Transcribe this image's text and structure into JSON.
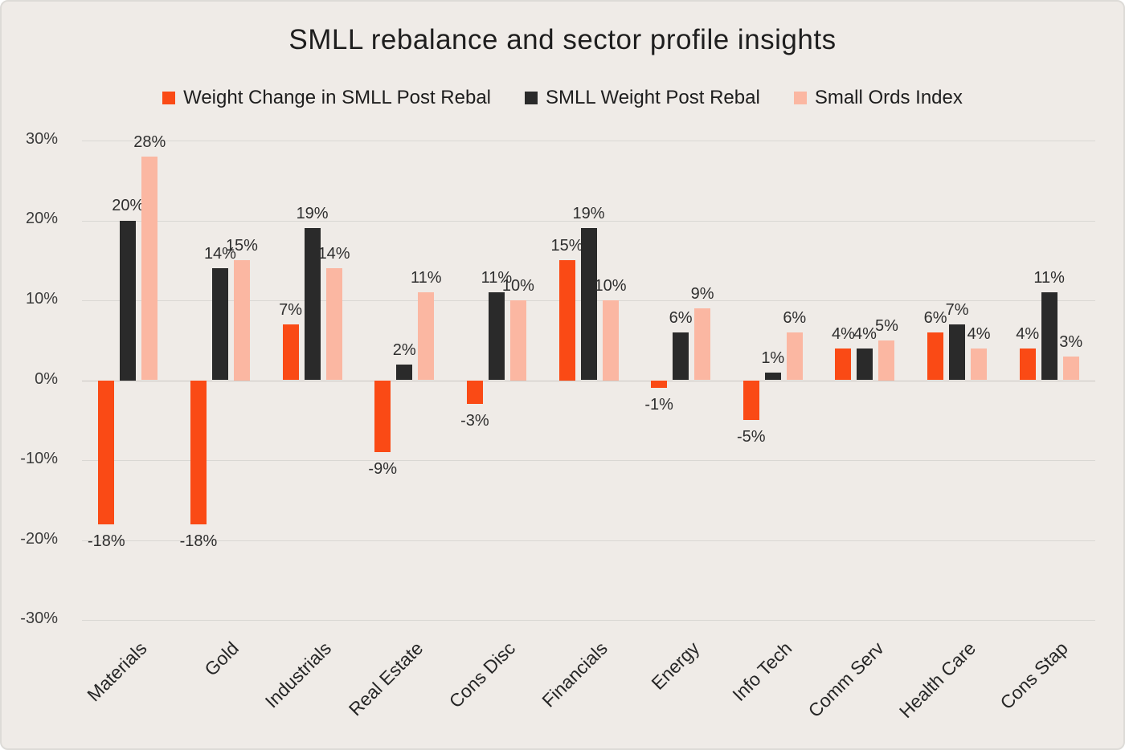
{
  "title": "SMLL rebalance and sector profile insights",
  "chart_data": {
    "type": "bar",
    "title": "SMLL rebalance and sector profile insights",
    "categories": [
      "Materials",
      "Gold",
      "Industrials",
      "Real Estate",
      "Cons Disc",
      "Financials",
      "Energy",
      "Info Tech",
      "Comm Serv",
      "Health Care",
      "Cons Stap"
    ],
    "series": [
      {
        "name": "Weight Change in SMLL Post Rebal",
        "color": "#FA4A15",
        "values": [
          -18,
          -18,
          7,
          -9,
          -3,
          15,
          -1,
          -5,
          4,
          6,
          4
        ],
        "labels": [
          "-18%",
          "-18%",
          "7%",
          "-9%",
          "-3%",
          "15%",
          "-1%",
          "-5%",
          "4%",
          "6%",
          "4%"
        ]
      },
      {
        "name": "SMLL Weight Post Rebal",
        "color": "#2A2A2A",
        "values": [
          20,
          14,
          19,
          2,
          11,
          19,
          6,
          1,
          4,
          7,
          11
        ],
        "labels": [
          "20%",
          "14%",
          "19%",
          "2%",
          "11%",
          "19%",
          "6%",
          "1%",
          "4%",
          "7%",
          "11%"
        ]
      },
      {
        "name": "Small Ords Index",
        "color": "#FBB7A2",
        "values": [
          28,
          15,
          14,
          11,
          10,
          10,
          9,
          6,
          5,
          4,
          3
        ],
        "labels": [
          "28%",
          "15%",
          "14%",
          "11%",
          "10%",
          "10%",
          "9%",
          "6%",
          "5%",
          "4%",
          "3%"
        ]
      }
    ],
    "ylim": [
      -30,
      30
    ],
    "yticks": [
      30,
      20,
      10,
      0,
      -10,
      -20,
      -30
    ],
    "ytick_labels": [
      "30%",
      "20%",
      "10%",
      "0%",
      "-10%",
      "-20%",
      "-30%"
    ],
    "grid": true,
    "legend_position": "top",
    "background": "#EFEBE7",
    "gridline_color": "#D9D7D3",
    "zero_line_color": "#C9C7C3"
  }
}
